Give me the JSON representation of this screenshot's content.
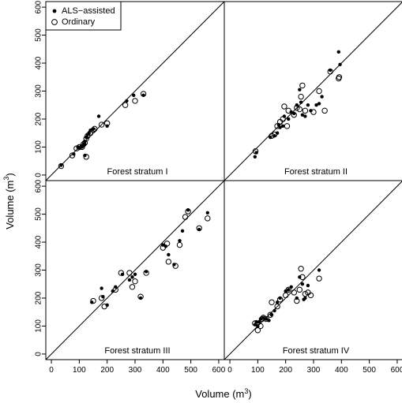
{
  "chart_data": {
    "type": "scatter",
    "layout": "2x2 panel grid, shared axes",
    "xlabel": "Volume (m3)",
    "ylabel": "Volume (m3)",
    "xlim": [
      -20,
      620
    ],
    "ylim": [
      -20,
      620
    ],
    "ticks": [
      0,
      100,
      200,
      300,
      400,
      500,
      600
    ],
    "grid": false,
    "reference_line": "1:1",
    "legend": {
      "placement": "top-left of first panel",
      "entries": [
        {
          "label": "ALS−assisted",
          "marker": "filled circle"
        },
        {
          "label": "Ordinary",
          "marker": "open circle"
        }
      ]
    },
    "panels": [
      {
        "title": "Forest stratum I",
        "series": [
          {
            "name": "ALS−assisted",
            "points": [
              [
                35,
                35
              ],
              [
                80,
                75
              ],
              [
                95,
                100
              ],
              [
                100,
                95
              ],
              [
                110,
                100
              ],
              [
                115,
                105
              ],
              [
                118,
                110
              ],
              [
                120,
                120
              ],
              [
                125,
                135
              ],
              [
                130,
                145
              ],
              [
                135,
                150
              ],
              [
                140,
                160
              ],
              [
                150,
                165
              ],
              [
                120,
                70
              ],
              [
                170,
                210
              ],
              [
                200,
                175
              ],
              [
                270,
                265
              ],
              [
                295,
                285
              ],
              [
                330,
                285
              ]
            ]
          },
          {
            "name": "Ordinary",
            "points": [
              [
                35,
                32
              ],
              [
                75,
                70
              ],
              [
                90,
                95
              ],
              [
                100,
                100
              ],
              [
                110,
                100
              ],
              [
                115,
                110
              ],
              [
                120,
                115
              ],
              [
                125,
                130
              ],
              [
                130,
                140
              ],
              [
                140,
                150
              ],
              [
                150,
                160
              ],
              [
                155,
                165
              ],
              [
                125,
                65
              ],
              [
                180,
                180
              ],
              [
                200,
                185
              ],
              [
                265,
                250
              ],
              [
                300,
                265
              ],
              [
                330,
                290
              ]
            ]
          }
        ]
      },
      {
        "title": "Forest stratum II",
        "series": [
          {
            "name": "ALS−assisted",
            "points": [
              [
                90,
                65
              ],
              [
                95,
                80
              ],
              [
                145,
                135
              ],
              [
                160,
                140
              ],
              [
                170,
                150
              ],
              [
                175,
                180
              ],
              [
                180,
                170
              ],
              [
                190,
                175
              ],
              [
                195,
                210
              ],
              [
                210,
                200
              ],
              [
                220,
                225
              ],
              [
                230,
                220
              ],
              [
                240,
                250
              ],
              [
                250,
                305
              ],
              [
                255,
                260
              ],
              [
                260,
                215
              ],
              [
                270,
                210
              ],
              [
                280,
                250
              ],
              [
                290,
                230
              ],
              [
                310,
                250
              ],
              [
                320,
                255
              ],
              [
                330,
                280
              ],
              [
                360,
                375
              ],
              [
                390,
                440
              ],
              [
                395,
                395
              ]
            ]
          },
          {
            "name": "Ordinary",
            "points": [
              [
                92,
                85
              ],
              [
                150,
                140
              ],
              [
                160,
                145
              ],
              [
                170,
                175
              ],
              [
                180,
                190
              ],
              [
                190,
                200
              ],
              [
                195,
                245
              ],
              [
                205,
                175
              ],
              [
                210,
                230
              ],
              [
                230,
                215
              ],
              [
                240,
                240
              ],
              [
                250,
                235
              ],
              [
                255,
                280
              ],
              [
                260,
                320
              ],
              [
                270,
                230
              ],
              [
                300,
                225
              ],
              [
                320,
                300
              ],
              [
                340,
                230
              ],
              [
                360,
                370
              ],
              [
                390,
                345
              ],
              [
                392,
                350
              ]
            ]
          }
        ]
      },
      {
        "title": "Forest stratum III",
        "series": [
          {
            "name": "ALS−assisted",
            "points": [
              [
                145,
                185
              ],
              [
                180,
                235
              ],
              [
                185,
                205
              ],
              [
                200,
                175
              ],
              [
                220,
                225
              ],
              [
                230,
                240
              ],
              [
                255,
                285
              ],
              [
                280,
                265
              ],
              [
                290,
                275
              ],
              [
                300,
                285
              ],
              [
                320,
                200
              ],
              [
                340,
                295
              ],
              [
                400,
                390
              ],
              [
                410,
                385
              ],
              [
                420,
                355
              ],
              [
                440,
                320
              ],
              [
                460,
                405
              ],
              [
                470,
                440
              ],
              [
                490,
                515
              ],
              [
                530,
                445
              ],
              [
                560,
                505
              ]
            ]
          },
          {
            "name": "Ordinary",
            "points": [
              [
                150,
                190
              ],
              [
                180,
                200
              ],
              [
                190,
                170
              ],
              [
                230,
                230
              ],
              [
                250,
                290
              ],
              [
                280,
                290
              ],
              [
                290,
                240
              ],
              [
                300,
                260
              ],
              [
                320,
                205
              ],
              [
                340,
                290
              ],
              [
                400,
                380
              ],
              [
                415,
                395
              ],
              [
                420,
                330
              ],
              [
                445,
                315
              ],
              [
                460,
                390
              ],
              [
                480,
                490
              ],
              [
                490,
                510
              ],
              [
                530,
                450
              ],
              [
                560,
                485
              ]
            ]
          }
        ]
      },
      {
        "title": "Forest stratum IV",
        "series": [
          {
            "name": "ALS−assisted",
            "points": [
              [
                90,
                105
              ],
              [
                95,
                115
              ],
              [
                100,
                100
              ],
              [
                105,
                115
              ],
              [
                110,
                125
              ],
              [
                120,
                130
              ],
              [
                130,
                125
              ],
              [
                140,
                120
              ],
              [
                150,
                140
              ],
              [
                160,
                155
              ],
              [
                170,
                185
              ],
              [
                180,
                200
              ],
              [
                200,
                225
              ],
              [
                210,
                230
              ],
              [
                220,
                240
              ],
              [
                240,
                200
              ],
              [
                250,
                275
              ],
              [
                260,
                250
              ],
              [
                265,
                195
              ],
              [
                270,
                200
              ],
              [
                280,
                245
              ],
              [
                320,
                300
              ]
            ]
          },
          {
            "name": "Ordinary",
            "points": [
              [
                90,
                110
              ],
              [
                100,
                85
              ],
              [
                110,
                100
              ],
              [
                115,
                125
              ],
              [
                120,
                130
              ],
              [
                130,
                125
              ],
              [
                145,
                140
              ],
              [
                150,
                185
              ],
              [
                170,
                170
              ],
              [
                180,
                195
              ],
              [
                200,
                210
              ],
              [
                210,
                230
              ],
              [
                230,
                220
              ],
              [
                240,
                190
              ],
              [
                250,
                230
              ],
              [
                255,
                305
              ],
              [
                260,
                275
              ],
              [
                270,
                215
              ],
              [
                280,
                220
              ],
              [
                290,
                210
              ],
              [
                320,
                270
              ]
            ]
          }
        ]
      }
    ]
  }
}
